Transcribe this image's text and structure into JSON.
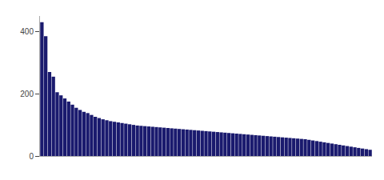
{
  "chart_data": {
    "type": "bar",
    "categories": [
      null,
      null,
      null,
      null,
      null,
      null,
      null,
      null,
      null,
      null,
      null,
      null,
      null,
      null,
      null,
      null,
      null,
      null,
      null,
      null,
      null,
      null,
      null,
      null,
      null,
      null,
      null,
      null,
      null,
      null,
      null,
      null,
      null,
      null,
      null,
      null,
      null,
      null,
      null,
      null,
      null,
      null,
      null,
      null,
      null,
      null,
      null,
      null,
      null,
      null,
      null,
      null,
      null,
      null,
      null,
      null,
      null,
      null,
      null,
      null,
      null,
      null,
      null,
      null,
      null,
      null,
      null,
      null,
      null,
      null,
      null,
      null,
      null,
      null,
      null,
      null,
      null,
      null,
      null,
      null,
      null,
      null,
      null,
      null,
      null,
      null,
      null
    ],
    "values": [
      430,
      385,
      270,
      255,
      205,
      195,
      185,
      175,
      165,
      155,
      148,
      142,
      138,
      132,
      126,
      122,
      118,
      115,
      112,
      110,
      108,
      106,
      104,
      102,
      100,
      98,
      97,
      96,
      95,
      94,
      93,
      92,
      91,
      90,
      89,
      88,
      87,
      86,
      85,
      84,
      83,
      82,
      81,
      80,
      79,
      78,
      77,
      76,
      75,
      74,
      73,
      72,
      71,
      70,
      69,
      68,
      67,
      66,
      65,
      64,
      63,
      62,
      61,
      60,
      59,
      58,
      57,
      56,
      55,
      54,
      52,
      50,
      48,
      46,
      44,
      42,
      40,
      38,
      36,
      34,
      32,
      30,
      28,
      26,
      24,
      22,
      20
    ],
    "color": "#1a1a6e",
    "ylim": [
      0,
      450
    ],
    "yticks": [
      0,
      200,
      400
    ],
    "grid": false,
    "tick_labels": "y"
  }
}
